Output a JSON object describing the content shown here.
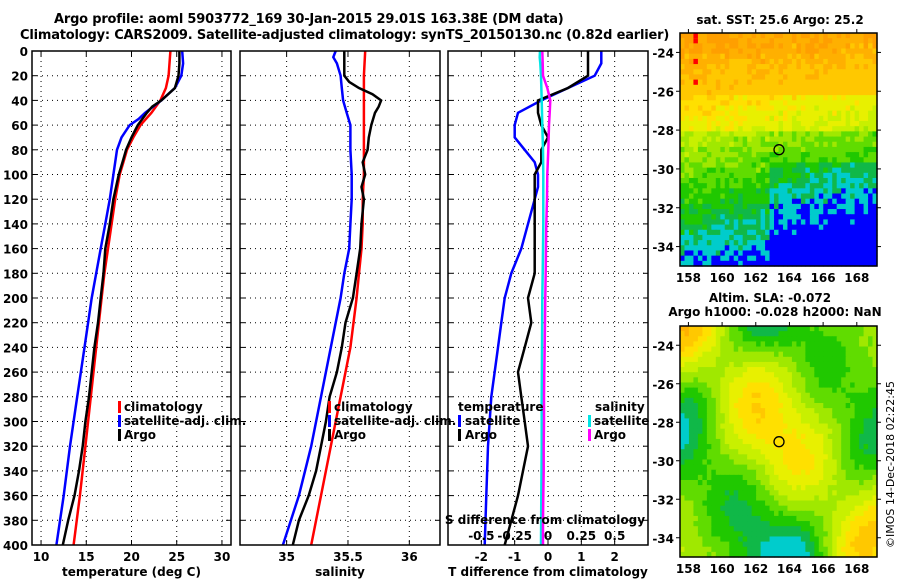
{
  "header": {
    "line1": "Argo profile: aoml 5903772_169 30-Jan-2015 29.01S 163.38E (DM data)",
    "line2": "Climatology: CARS2009. Satellite-adjusted climatology: synTS_20150130.nc (0.82d earlier)"
  },
  "colors": {
    "climatology": "#ff0000",
    "satellite": "#0000ff",
    "argo": "#000000",
    "sal_satellite": "#00e5e5",
    "sal_argo": "#ff00ff"
  },
  "stamp": "©IMOS 14-Dec-2018 02:22:45",
  "chart_data": [
    {
      "type": "line",
      "id": "temperature",
      "xlabel": "temperature (deg C)",
      "ylabel": "",
      "xlim": [
        9,
        31
      ],
      "ylim": [
        400,
        0
      ],
      "xticks": [
        10,
        15,
        20,
        25,
        30
      ],
      "yticks": [
        0,
        20,
        40,
        60,
        80,
        100,
        120,
        140,
        160,
        180,
        200,
        220,
        240,
        260,
        280,
        300,
        320,
        340,
        360,
        380,
        400
      ],
      "grid": true,
      "legend": {
        "placement": "right-lower",
        "entries": [
          "climatology",
          "satellite-adj. clim.",
          "Argo"
        ]
      },
      "series": [
        {
          "name": "climatology",
          "color": "#ff0000",
          "depth": [
            0,
            20,
            30,
            40,
            50,
            60,
            70,
            80,
            90,
            100,
            120,
            140,
            160,
            180,
            200,
            240,
            280,
            320,
            360,
            400
          ],
          "values": [
            24.3,
            24.1,
            23.8,
            23.2,
            22.2,
            21.0,
            20.2,
            19.5,
            19.1,
            18.7,
            18.2,
            17.8,
            17.4,
            17.0,
            16.7,
            16.1,
            15.5,
            14.9,
            14.3,
            13.6
          ]
        },
        {
          "name": "satellite-adj. clim.",
          "color": "#0000ff",
          "depth": [
            0,
            10,
            20,
            30,
            40,
            50,
            55,
            60,
            70,
            80,
            90,
            100,
            120,
            140,
            160,
            180,
            200,
            240,
            280,
            320,
            360,
            400
          ],
          "values": [
            25.6,
            25.7,
            25.5,
            24.8,
            23.3,
            21.5,
            20.8,
            19.8,
            18.9,
            18.4,
            18.2,
            18.0,
            17.6,
            17.1,
            16.6,
            16.1,
            15.6,
            14.8,
            14.0,
            13.2,
            12.5,
            11.7
          ]
        },
        {
          "name": "Argo",
          "color": "#000000",
          "depth": [
            0,
            10,
            20,
            30,
            40,
            45,
            50,
            55,
            60,
            70,
            80,
            90,
            100,
            120,
            140,
            160,
            180,
            200,
            220,
            240,
            260,
            280,
            300,
            320,
            340,
            360,
            380,
            400
          ],
          "values": [
            25.3,
            25.3,
            25.2,
            24.8,
            23.3,
            22.3,
            21.7,
            21.2,
            20.7,
            20.0,
            19.4,
            19.0,
            18.6,
            18.0,
            17.6,
            17.1,
            16.9,
            16.6,
            16.3,
            15.9,
            15.6,
            15.3,
            14.9,
            14.6,
            14.2,
            13.7,
            13.0,
            12.4
          ]
        }
      ]
    },
    {
      "type": "line",
      "id": "salinity",
      "xlabel": "salinity",
      "ylabel": "",
      "xlim": [
        34.62,
        36.25
      ],
      "ylim": [
        400,
        0
      ],
      "xticks": [
        35,
        35.5,
        36
      ],
      "xticklabels": [
        "35",
        "35.5",
        "36"
      ],
      "grid": true,
      "legend": {
        "placement": "right-lower",
        "entries": [
          "climatology",
          "satellite-adj. clim.",
          "Argo"
        ]
      },
      "series": [
        {
          "name": "climatology",
          "color": "#ff0000",
          "depth": [
            0,
            20,
            40,
            60,
            80,
            100,
            120,
            140,
            160,
            180,
            200,
            240,
            280,
            320,
            360,
            400
          ],
          "values": [
            35.64,
            35.63,
            35.63,
            35.63,
            35.63,
            35.63,
            35.62,
            35.62,
            35.61,
            35.59,
            35.57,
            35.52,
            35.44,
            35.36,
            35.28,
            35.2
          ]
        },
        {
          "name": "satellite-adj. clim.",
          "color": "#0000ff",
          "depth": [
            0,
            5,
            10,
            20,
            30,
            40,
            50,
            60,
            70,
            80,
            100,
            120,
            140,
            160,
            180,
            200,
            240,
            280,
            320,
            360,
            400
          ],
          "values": [
            35.4,
            35.38,
            35.41,
            35.44,
            35.45,
            35.46,
            35.49,
            35.52,
            35.52,
            35.52,
            35.53,
            35.53,
            35.52,
            35.51,
            35.47,
            35.44,
            35.36,
            35.28,
            35.2,
            35.1,
            34.97
          ]
        },
        {
          "name": "Argo",
          "color": "#000000",
          "depth": [
            0,
            10,
            20,
            25,
            30,
            35,
            40,
            45,
            50,
            60,
            70,
            80,
            90,
            100,
            110,
            120,
            140,
            160,
            180,
            200,
            220,
            240,
            260,
            280,
            300,
            320,
            340,
            360,
            380,
            400
          ],
          "values": [
            35.47,
            35.47,
            35.47,
            35.51,
            35.59,
            35.7,
            35.77,
            35.75,
            35.72,
            35.69,
            35.67,
            35.66,
            35.62,
            35.64,
            35.61,
            35.63,
            35.61,
            35.6,
            35.57,
            35.54,
            35.48,
            35.45,
            35.41,
            35.35,
            35.32,
            35.28,
            35.24,
            35.18,
            35.1,
            35.05
          ]
        }
      ]
    },
    {
      "type": "line",
      "id": "difference",
      "xlabel": "T difference from climatology",
      "xlabel2": "S difference from climatology",
      "xlim": [
        -3,
        3
      ],
      "ylim": [
        400,
        0
      ],
      "xticks": [
        -2,
        -1,
        0,
        1,
        2
      ],
      "xticks2": [
        -0.5,
        -0.25,
        0,
        0.25,
        0.5
      ],
      "xticks2labels": [
        "-0.5",
        "-0.25",
        "0",
        "0.25",
        "0.5"
      ],
      "grid": true,
      "legend": {
        "temperature_title": "temperature",
        "salinity_title": "salinity",
        "entries_temperature": [
          "satellite",
          "Argo"
        ],
        "entries_salinity": [
          "satellite",
          "Argo"
        ]
      },
      "series": [
        {
          "name": "temperature satellite",
          "color": "#0000ff",
          "depth": [
            0,
            10,
            20,
            30,
            40,
            50,
            60,
            70,
            80,
            90,
            100,
            110,
            120,
            140,
            160,
            180,
            200,
            220,
            240,
            280,
            320,
            360,
            400
          ],
          "values": [
            1.6,
            1.6,
            1.4,
            0.6,
            -0.2,
            -0.9,
            -1.0,
            -1.0,
            -0.7,
            -0.4,
            -0.3,
            -0.3,
            -0.4,
            -0.6,
            -0.8,
            -1.1,
            -1.3,
            -1.4,
            -1.5,
            -1.7,
            -1.8,
            -1.85,
            -1.9
          ]
        },
        {
          "name": "temperature Argo",
          "color": "#000000",
          "depth": [
            0,
            10,
            20,
            30,
            40,
            50,
            60,
            70,
            80,
            90,
            100,
            120,
            140,
            160,
            180,
            200,
            220,
            240,
            260,
            280,
            300,
            320,
            360,
            400
          ],
          "values": [
            1.2,
            1.2,
            1.2,
            0.6,
            -0.3,
            -0.3,
            -0.2,
            0.0,
            -0.2,
            -0.2,
            -0.4,
            -0.4,
            -0.4,
            -0.4,
            -0.4,
            -0.6,
            -0.5,
            -0.7,
            -0.9,
            -0.8,
            -0.7,
            -0.6,
            -0.9,
            -1.3
          ]
        },
        {
          "name": "salinity satellite",
          "color": "#00e5e5",
          "depth": [
            0,
            5,
            10,
            20,
            40,
            60,
            80,
            100,
            120,
            140,
            160,
            180,
            200,
            240,
            280,
            320,
            360,
            400
          ],
          "values": [
            -0.24,
            -0.25,
            -0.23,
            -0.21,
            -0.19,
            -0.17,
            -0.15,
            -0.14,
            -0.14,
            -0.14,
            -0.15,
            -0.16,
            -0.17,
            -0.18,
            -0.19,
            -0.19,
            -0.2,
            -0.21
          ]
        },
        {
          "name": "salinity Argo",
          "color": "#ff00ff",
          "depth": [
            0,
            10,
            20,
            30,
            40,
            50,
            60,
            80,
            100,
            120,
            140,
            160,
            180,
            200,
            220,
            240,
            260,
            280,
            300,
            320,
            340,
            360,
            380,
            400
          ],
          "values": [
            -0.17,
            -0.16,
            -0.15,
            -0.02,
            0.07,
            0.05,
            0.03,
            0.01,
            -0.02,
            -0.03,
            -0.05,
            -0.06,
            -0.07,
            -0.08,
            -0.09,
            -0.1,
            -0.11,
            -0.12,
            -0.12,
            -0.13,
            -0.13,
            -0.14,
            -0.15,
            -0.15
          ]
        }
      ]
    },
    {
      "type": "heatmap",
      "id": "sst-map",
      "title": "sat. SST: 25.6 Argo: 25.2",
      "xlim": [
        157.5,
        169.2
      ],
      "ylim": [
        -35,
        -23
      ],
      "xticks": [
        158,
        160,
        162,
        164,
        166,
        168
      ],
      "yticks": [
        -24,
        -26,
        -28,
        -30,
        -32,
        -34
      ],
      "marker": {
        "lon": 163.38,
        "lat": -29.01
      }
    },
    {
      "type": "heatmap",
      "id": "sla-map",
      "title": "Altim. SLA: -0.072",
      "subtitle": "Argo h1000: -0.028 h2000: NaN",
      "xlim": [
        157.5,
        169.2
      ],
      "ylim": [
        -35,
        -23
      ],
      "xticks": [
        158,
        160,
        162,
        164,
        166,
        168
      ],
      "yticks": [
        -24,
        -26,
        -28,
        -30,
        -32,
        -34
      ],
      "marker": {
        "lon": 163.38,
        "lat": -29.01
      }
    }
  ]
}
